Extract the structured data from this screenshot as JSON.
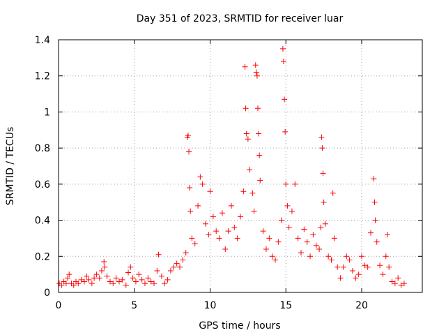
{
  "chart_data": {
    "type": "scatter",
    "title": "Day 351 of 2023, SRMTID for receiver luar",
    "xlabel": "GPS time / hours",
    "ylabel": "SRMTID / TECUs",
    "xlim": [
      0,
      24
    ],
    "ylim": [
      0,
      1.4
    ],
    "xticks": [
      0,
      5,
      10,
      15,
      20
    ],
    "xtick_labels": [
      "0",
      "5",
      "10",
      "15",
      "20"
    ],
    "yticks": [
      0,
      0.2,
      0.4,
      0.6,
      0.8,
      1,
      1.2,
      1.4
    ],
    "ytick_labels": [
      "0",
      "0.2",
      "0.4",
      "0.6",
      "0.8",
      "1",
      "1.2",
      "1.4"
    ],
    "grid": true,
    "marker": "+",
    "series_color": "#ff0000",
    "series": [
      {
        "name": "SRMTID",
        "points": [
          [
            0.05,
            0.05
          ],
          [
            0.2,
            0.04
          ],
          [
            0.35,
            0.06
          ],
          [
            0.5,
            0.05
          ],
          [
            0.6,
            0.08
          ],
          [
            0.7,
            0.1
          ],
          [
            0.85,
            0.05
          ],
          [
            1.0,
            0.04
          ],
          [
            1.15,
            0.06
          ],
          [
            1.3,
            0.05
          ],
          [
            1.5,
            0.07
          ],
          [
            1.7,
            0.06
          ],
          [
            1.85,
            0.09
          ],
          [
            2.0,
            0.07
          ],
          [
            2.2,
            0.05
          ],
          [
            2.35,
            0.08
          ],
          [
            2.5,
            0.1
          ],
          [
            2.7,
            0.08
          ],
          [
            2.85,
            0.12
          ],
          [
            3.0,
            0.17
          ],
          [
            3.05,
            0.14
          ],
          [
            3.2,
            0.09
          ],
          [
            3.4,
            0.06
          ],
          [
            3.6,
            0.05
          ],
          [
            3.8,
            0.08
          ],
          [
            4.0,
            0.06
          ],
          [
            4.2,
            0.07
          ],
          [
            4.45,
            0.04
          ],
          [
            4.6,
            0.11
          ],
          [
            4.75,
            0.14
          ],
          [
            4.9,
            0.08
          ],
          [
            5.1,
            0.06
          ],
          [
            5.3,
            0.1
          ],
          [
            5.5,
            0.07
          ],
          [
            5.7,
            0.05
          ],
          [
            5.9,
            0.08
          ],
          [
            6.1,
            0.06
          ],
          [
            6.3,
            0.05
          ],
          [
            6.5,
            0.12
          ],
          [
            6.6,
            0.21
          ],
          [
            6.8,
            0.09
          ],
          [
            7.0,
            0.05
          ],
          [
            7.2,
            0.07
          ],
          [
            7.4,
            0.12
          ],
          [
            7.6,
            0.14
          ],
          [
            7.8,
            0.16
          ],
          [
            8.0,
            0.14
          ],
          [
            8.2,
            0.18
          ],
          [
            8.4,
            0.22
          ],
          [
            8.5,
            0.86
          ],
          [
            8.55,
            0.87
          ],
          [
            8.6,
            0.78
          ],
          [
            8.65,
            0.58
          ],
          [
            8.7,
            0.45
          ],
          [
            8.8,
            0.3
          ],
          [
            9.0,
            0.27
          ],
          [
            9.2,
            0.48
          ],
          [
            9.35,
            0.64
          ],
          [
            9.5,
            0.6
          ],
          [
            9.7,
            0.38
          ],
          [
            9.9,
            0.32
          ],
          [
            10.0,
            0.56
          ],
          [
            10.2,
            0.42
          ],
          [
            10.4,
            0.34
          ],
          [
            10.6,
            0.3
          ],
          [
            10.8,
            0.44
          ],
          [
            11.0,
            0.24
          ],
          [
            11.2,
            0.34
          ],
          [
            11.4,
            0.48
          ],
          [
            11.6,
            0.36
          ],
          [
            11.8,
            0.3
          ],
          [
            12.0,
            0.42
          ],
          [
            12.2,
            0.56
          ],
          [
            12.3,
            1.25
          ],
          [
            12.35,
            1.02
          ],
          [
            12.4,
            0.88
          ],
          [
            12.5,
            0.85
          ],
          [
            12.6,
            0.68
          ],
          [
            12.8,
            0.55
          ],
          [
            12.9,
            0.45
          ],
          [
            13.0,
            1.26
          ],
          [
            13.05,
            1.22
          ],
          [
            13.1,
            1.2
          ],
          [
            13.15,
            1.02
          ],
          [
            13.2,
            0.88
          ],
          [
            13.25,
            0.76
          ],
          [
            13.3,
            0.62
          ],
          [
            13.5,
            0.34
          ],
          [
            13.7,
            0.24
          ],
          [
            13.9,
            0.3
          ],
          [
            14.1,
            0.2
          ],
          [
            14.3,
            0.18
          ],
          [
            14.5,
            0.28
          ],
          [
            14.7,
            0.4
          ],
          [
            14.8,
            1.35
          ],
          [
            14.85,
            1.28
          ],
          [
            14.9,
            1.07
          ],
          [
            14.95,
            0.89
          ],
          [
            15.0,
            0.6
          ],
          [
            15.1,
            0.48
          ],
          [
            15.2,
            0.36
          ],
          [
            15.4,
            0.45
          ],
          [
            15.6,
            0.6
          ],
          [
            15.8,
            0.3
          ],
          [
            16.0,
            0.22
          ],
          [
            16.2,
            0.35
          ],
          [
            16.4,
            0.28
          ],
          [
            16.6,
            0.2
          ],
          [
            16.8,
            0.32
          ],
          [
            17.0,
            0.26
          ],
          [
            17.2,
            0.24
          ],
          [
            17.3,
            0.36
          ],
          [
            17.35,
            0.86
          ],
          [
            17.4,
            0.8
          ],
          [
            17.45,
            0.66
          ],
          [
            17.5,
            0.5
          ],
          [
            17.6,
            0.38
          ],
          [
            17.8,
            0.2
          ],
          [
            18.0,
            0.18
          ],
          [
            18.1,
            0.55
          ],
          [
            18.2,
            0.3
          ],
          [
            18.4,
            0.14
          ],
          [
            18.6,
            0.08
          ],
          [
            18.8,
            0.14
          ],
          [
            19.0,
            0.2
          ],
          [
            19.2,
            0.18
          ],
          [
            19.4,
            0.12
          ],
          [
            19.6,
            0.08
          ],
          [
            19.8,
            0.1
          ],
          [
            20.0,
            0.2
          ],
          [
            20.2,
            0.15
          ],
          [
            20.4,
            0.14
          ],
          [
            20.6,
            0.33
          ],
          [
            20.8,
            0.63
          ],
          [
            20.85,
            0.5
          ],
          [
            20.9,
            0.4
          ],
          [
            21.0,
            0.28
          ],
          [
            21.2,
            0.15
          ],
          [
            21.4,
            0.1
          ],
          [
            21.6,
            0.2
          ],
          [
            21.7,
            0.32
          ],
          [
            21.8,
            0.14
          ],
          [
            22.0,
            0.06
          ],
          [
            22.2,
            0.05
          ],
          [
            22.4,
            0.08
          ],
          [
            22.6,
            0.04
          ],
          [
            22.8,
            0.05
          ]
        ]
      }
    ]
  }
}
